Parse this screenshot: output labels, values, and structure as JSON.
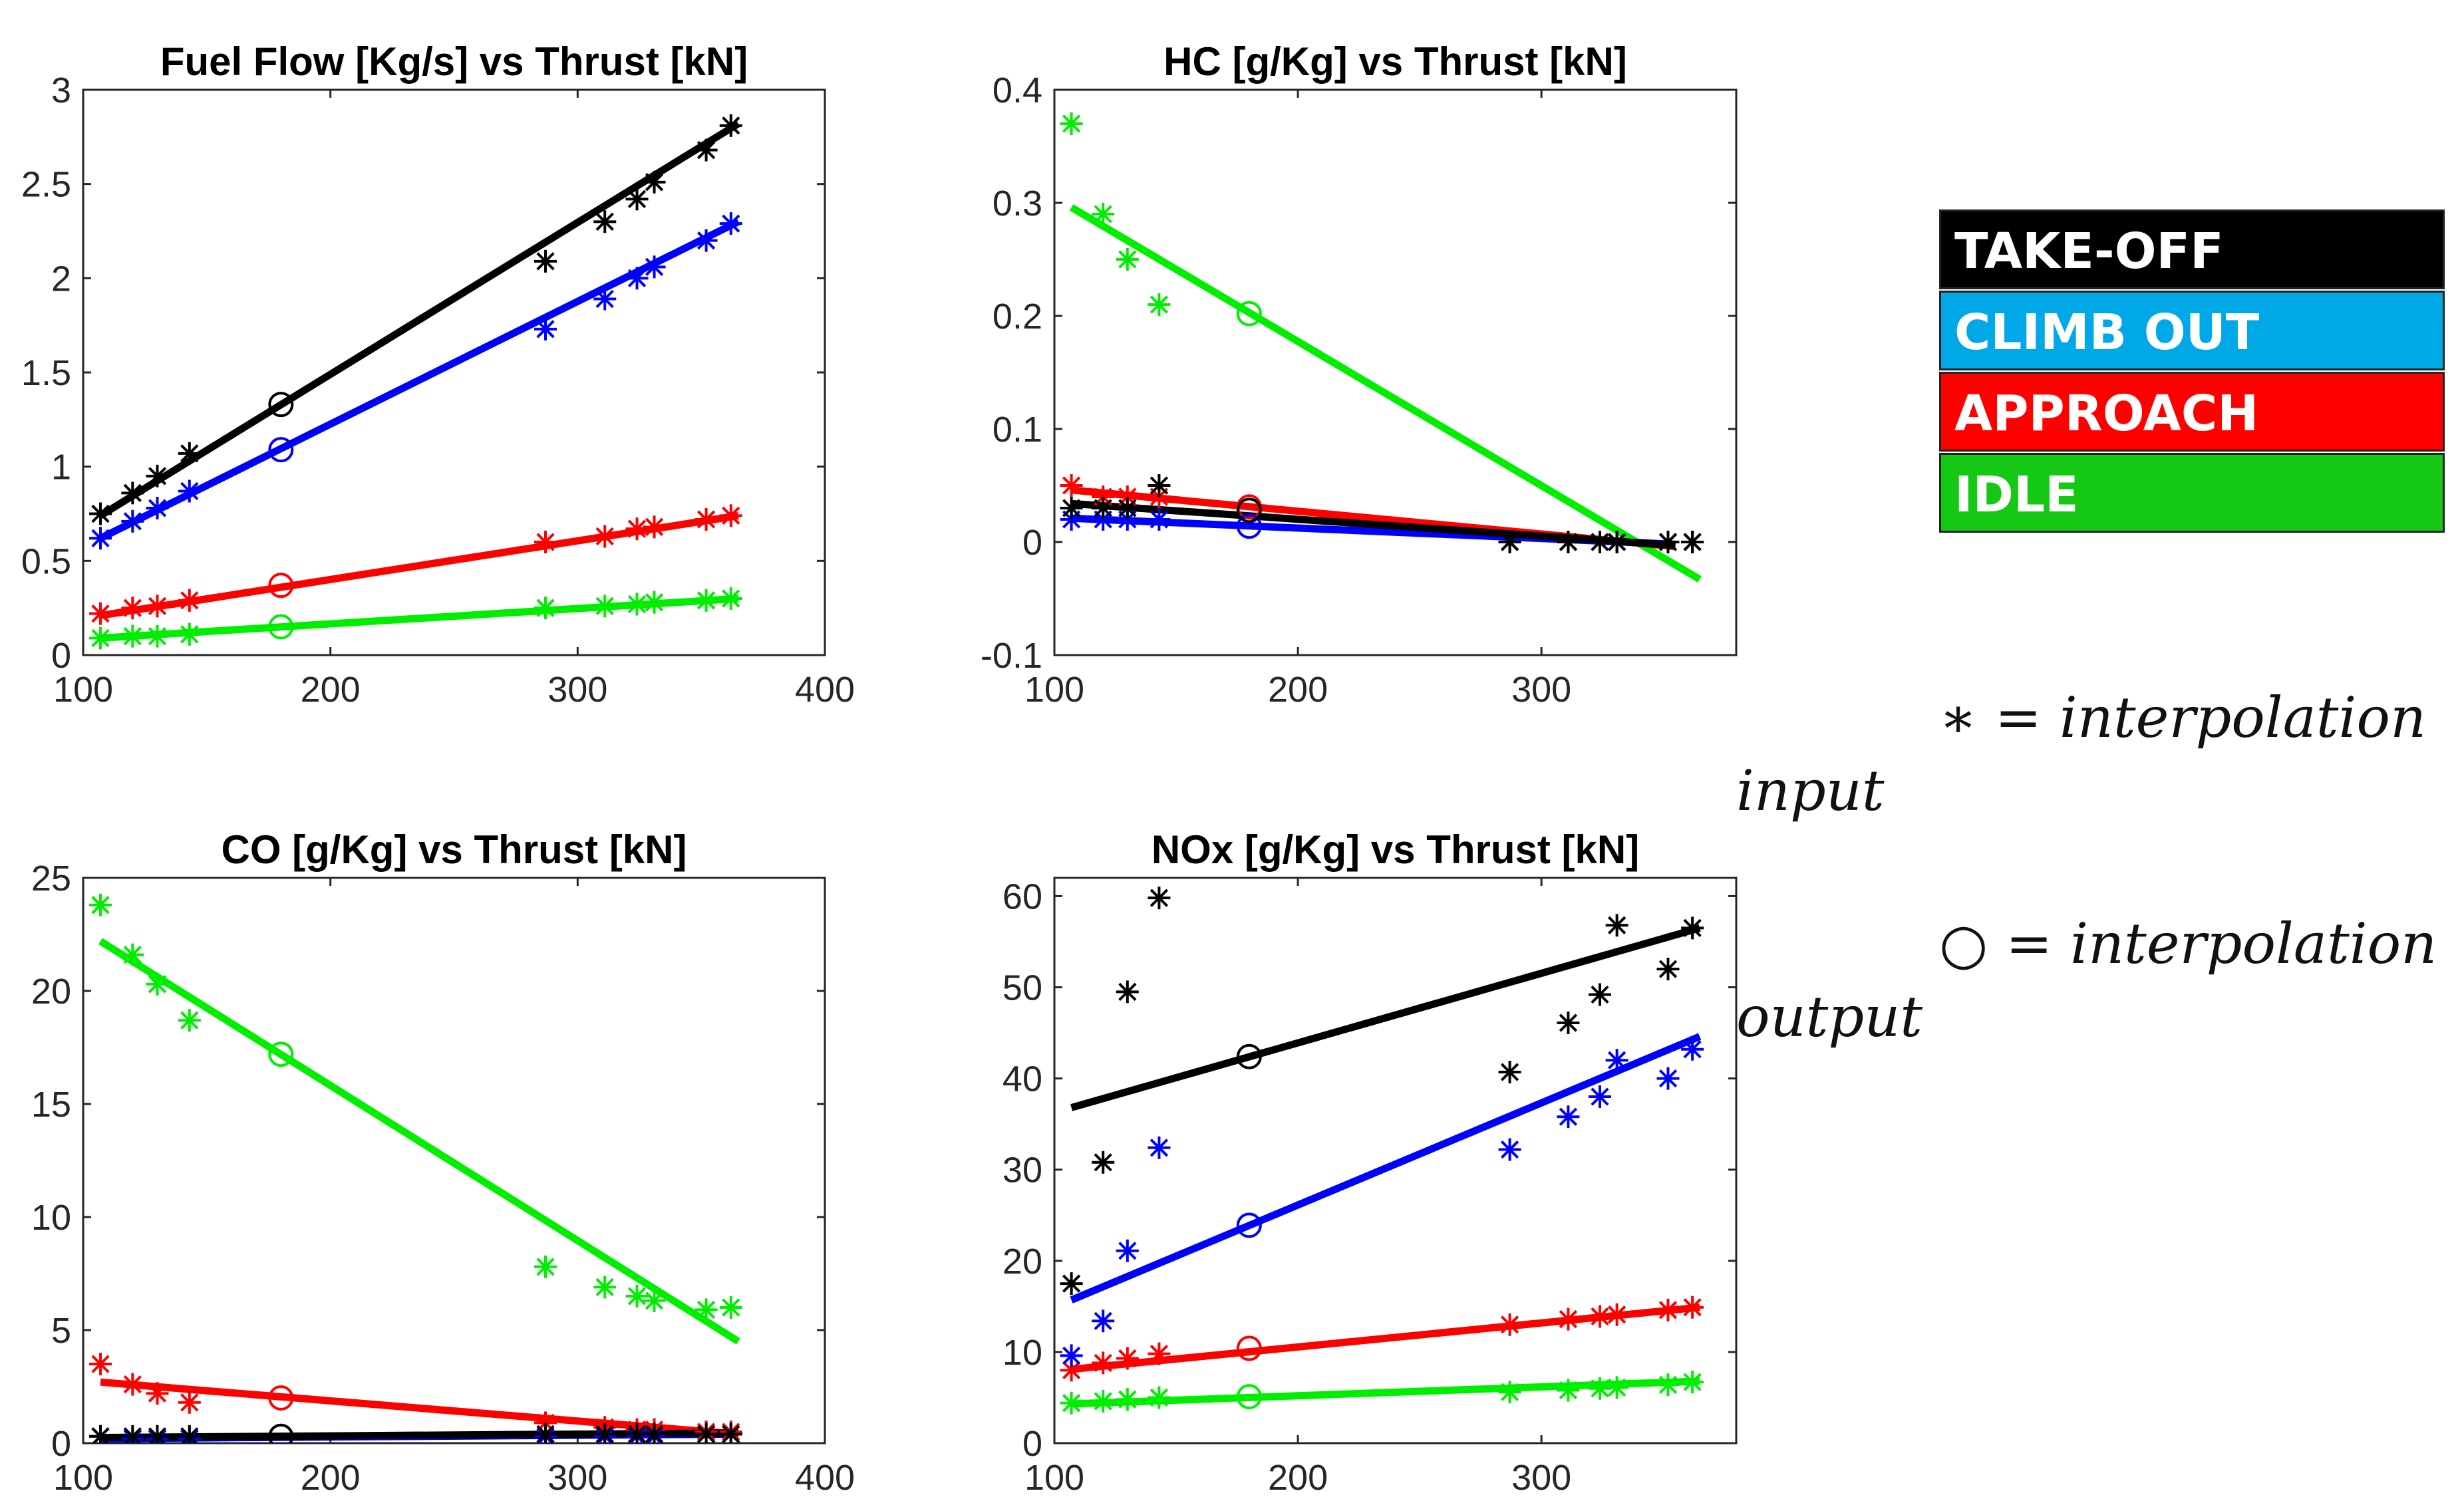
{
  "legend": {
    "items": [
      {
        "label": "TAKE-OFF",
        "color": "#000000"
      },
      {
        "label": "CLIMB OUT",
        "color": "#00a8e8"
      },
      {
        "label": "APPROACH",
        "color": "#ff0000"
      },
      {
        "label": "IDLE",
        "color": "#14c814"
      }
    ]
  },
  "notes": {
    "star_symbol": "∗",
    "star_text": "= interpolation",
    "input_word": "input",
    "circle_symbol": "○",
    "circle_text": "= interpolation",
    "output_word": "output"
  },
  "series_colors": {
    "takeoff": "#000000",
    "climb": "#0000ff",
    "approach": "#ff0000",
    "idle": "#00ee00"
  },
  "chart_data": [
    {
      "type": "scatter",
      "title": "Fuel Flow [Kg/s] vs Thrust [kN]",
      "xlim": [
        100,
        400
      ],
      "ylim": [
        0,
        3
      ],
      "xticks": [
        100,
        200,
        300,
        400
      ],
      "xtick_labels": [
        "100",
        "200",
        "300",
        "400"
      ],
      "yticks": [
        0,
        0.5,
        1,
        1.5,
        2,
        2.5,
        3
      ],
      "ytick_labels": [
        "0",
        "0.5",
        "1",
        "1.5",
        "2",
        "2.5",
        "3"
      ],
      "x": [
        107,
        120,
        130,
        143,
        287,
        311,
        324,
        331,
        352,
        362
      ],
      "output_x": 180,
      "series": [
        {
          "name": "TAKE-OFF",
          "key": "takeoff",
          "input": [
            0.75,
            0.86,
            0.95,
            1.07,
            2.09,
            2.3,
            2.42,
            2.51,
            2.68,
            2.81
          ],
          "fit": [
            [
              107,
              0.74
            ],
            [
              365,
              2.82
            ]
          ],
          "output": 1.33
        },
        {
          "name": "CLIMB OUT",
          "key": "climb",
          "input": [
            0.62,
            0.71,
            0.78,
            0.87,
            1.73,
            1.89,
            2.0,
            2.06,
            2.2,
            2.29
          ],
          "fit": [
            [
              107,
              0.62
            ],
            [
              365,
              2.3
            ]
          ],
          "output": 1.09
        },
        {
          "name": "APPROACH",
          "key": "approach",
          "input": [
            0.22,
            0.25,
            0.26,
            0.29,
            0.6,
            0.63,
            0.67,
            0.68,
            0.72,
            0.74
          ],
          "fit": [
            [
              107,
              0.21
            ],
            [
              365,
              0.74
            ]
          ],
          "output": 0.37
        },
        {
          "name": "IDLE",
          "key": "idle",
          "input": [
            0.09,
            0.1,
            0.1,
            0.11,
            0.25,
            0.26,
            0.27,
            0.28,
            0.29,
            0.3
          ],
          "fit": [
            [
              107,
              0.09
            ],
            [
              365,
              0.3
            ]
          ],
          "output": 0.15
        }
      ]
    },
    {
      "type": "scatter",
      "title": "HC [g/Kg] vs Thrust [kN]",
      "xlim": [
        100,
        380
      ],
      "ylim": [
        -0.1,
        0.4
      ],
      "xticks": [
        100,
        200,
        300
      ],
      "xtick_labels": [
        "100",
        "200",
        "300"
      ],
      "yticks": [
        -0.1,
        0,
        0.1,
        0.2,
        0.3,
        0.4
      ],
      "ytick_labels": [
        "-0.1",
        "0",
        "0.1",
        "0.2",
        "0.3",
        "0.4"
      ],
      "x": [
        107,
        120,
        130,
        143,
        287,
        311,
        324,
        331,
        352,
        362
      ],
      "output_x": 180,
      "series": [
        {
          "name": "TAKE-OFF",
          "key": "takeoff",
          "input": [
            0.03,
            0.03,
            0.03,
            0.05,
            0.0,
            0.0,
            0.0,
            0.0,
            0.0,
            0.0
          ],
          "fit": [
            [
              107,
              0.034
            ],
            [
              355,
              -0.003
            ]
          ],
          "output": 0.028
        },
        {
          "name": "CLIMB OUT",
          "key": "climb",
          "input": [
            0.02,
            0.02,
            0.02,
            0.02,
            0.0,
            0.0,
            0.0,
            0.0,
            0.0,
            0.0
          ],
          "fit": [
            [
              107,
              0.021
            ],
            [
              355,
              -0.002
            ]
          ],
          "output": 0.014
        },
        {
          "name": "APPROACH",
          "key": "approach",
          "input": [
            0.05,
            0.04,
            0.04,
            0.04,
            0.0,
            0.0,
            0.0,
            0.0,
            0.0,
            0.0
          ],
          "fit": [
            [
              107,
              0.046
            ],
            [
              355,
              -0.004
            ]
          ],
          "output": 0.031
        },
        {
          "name": "IDLE",
          "key": "idle",
          "input": [
            0.37,
            0.29,
            0.25,
            0.21,
            0.0,
            0.0,
            0.0,
            0.0,
            0.0,
            0.0
          ],
          "fit": [
            [
              107,
              0.296
            ],
            [
              365,
              -0.033
            ]
          ],
          "output": 0.202
        }
      ]
    },
    {
      "type": "scatter",
      "title": "CO [g/Kg] vs Thrust [kN]",
      "xlim": [
        100,
        400
      ],
      "ylim": [
        0,
        25
      ],
      "xticks": [
        100,
        200,
        300,
        400
      ],
      "xtick_labels": [
        "100",
        "200",
        "300",
        "400"
      ],
      "yticks": [
        0,
        5,
        10,
        15,
        20,
        25
      ],
      "ytick_labels": [
        "0",
        "5",
        "10",
        "15",
        "20",
        "25"
      ],
      "x": [
        107,
        120,
        130,
        143,
        287,
        311,
        324,
        331,
        352,
        362
      ],
      "output_x": 180,
      "series": [
        {
          "name": "TAKE-OFF",
          "key": "takeoff",
          "input": [
            0.3,
            0.3,
            0.3,
            0.3,
            0.4,
            0.4,
            0.4,
            0.4,
            0.4,
            0.4
          ],
          "fit": [
            [
              107,
              0.25
            ],
            [
              365,
              0.45
            ]
          ],
          "output": 0.3
        },
        {
          "name": "CLIMB OUT",
          "key": "climb",
          "input": [
            0.3,
            0.2,
            0.2,
            0.2,
            0.3,
            0.3,
            0.3,
            0.3,
            0.4,
            0.4
          ],
          "fit": [
            [
              107,
              0.2
            ],
            [
              365,
              0.4
            ]
          ],
          "output": 0.3
        },
        {
          "name": "APPROACH",
          "key": "approach",
          "input": [
            3.5,
            2.6,
            2.2,
            1.8,
            0.9,
            0.7,
            0.6,
            0.6,
            0.5,
            0.5
          ],
          "fit": [
            [
              107,
              2.7
            ],
            [
              365,
              0.4
            ]
          ],
          "output": 2.0
        },
        {
          "name": "IDLE",
          "key": "idle",
          "input": [
            23.8,
            21.6,
            20.3,
            18.7,
            7.8,
            6.9,
            6.5,
            6.3,
            5.9,
            6.0
          ],
          "fit": [
            [
              107,
              22.2
            ],
            [
              365,
              4.5
            ]
          ],
          "output": 17.2
        }
      ]
    },
    {
      "type": "scatter",
      "title": "NOx [g/Kg] vs Thrust [kN]",
      "xlim": [
        100,
        380
      ],
      "ylim": [
        0,
        62
      ],
      "xticks": [
        100,
        200,
        300
      ],
      "xtick_labels": [
        "100",
        "200",
        "300"
      ],
      "yticks": [
        0,
        10,
        20,
        30,
        40,
        50,
        60
      ],
      "ytick_labels": [
        "0",
        "10",
        "20",
        "30",
        "40",
        "50",
        "60"
      ],
      "x": [
        107,
        120,
        130,
        143,
        287,
        311,
        324,
        331,
        352,
        362
      ],
      "output_x": 180,
      "series": [
        {
          "name": "TAKE-OFF",
          "key": "takeoff",
          "input": [
            17.5,
            30.8,
            49.5,
            59.8,
            40.7,
            46.1,
            49.2,
            56.8,
            52.0,
            56.5
          ],
          "fit": [
            [
              107,
              36.8
            ],
            [
              365,
              56.5
            ]
          ],
          "output": 42.4
        },
        {
          "name": "CLIMB OUT",
          "key": "climb",
          "input": [
            9.6,
            13.4,
            21.1,
            32.4,
            32.2,
            35.8,
            38.0,
            42.0,
            40.0,
            43.2
          ],
          "fit": [
            [
              107,
              15.7
            ],
            [
              365,
              44.6
            ]
          ],
          "output": 23.9
        },
        {
          "name": "APPROACH",
          "key": "approach",
          "input": [
            8.0,
            8.8,
            9.3,
            9.8,
            13.0,
            13.6,
            13.9,
            14.1,
            14.6,
            14.9
          ],
          "fit": [
            [
              107,
              8.1
            ],
            [
              365,
              14.9
            ]
          ],
          "output": 10.4
        },
        {
          "name": "IDLE",
          "key": "idle",
          "input": [
            4.4,
            4.6,
            4.8,
            5.0,
            5.6,
            5.8,
            6.0,
            6.1,
            6.4,
            6.7
          ],
          "fit": [
            [
              107,
              4.3
            ],
            [
              365,
              6.8
            ]
          ],
          "output": 5.1
        }
      ]
    }
  ]
}
